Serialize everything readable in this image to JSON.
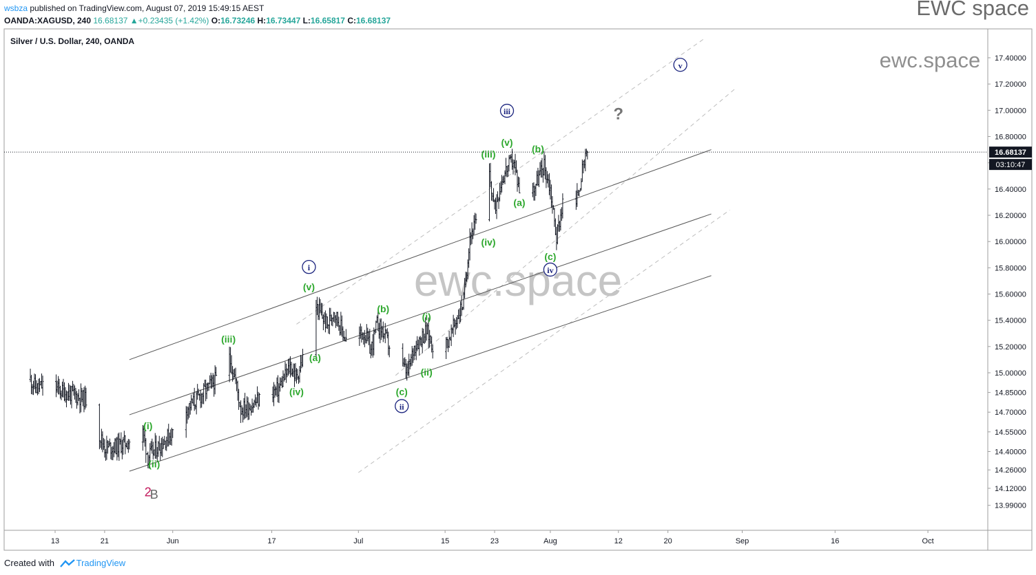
{
  "header": {
    "user": "wsbza",
    "published_text": " published on TradingView.com, August 07, 2019 15:49:15 AEST"
  },
  "ohlc": {
    "symbol": "OANDA:XAGUSD, 240",
    "last": "16.68137",
    "change": "+0.23435 (+1.42%)",
    "o_label": "O:",
    "o": "16.73246",
    "h_label": "H:",
    "h": "16.73447",
    "l_label": "L:",
    "l": "16.65817",
    "c_label": "C:",
    "c": "16.68137"
  },
  "brand": {
    "top_right": "EWC space",
    "watermark_small": "ewc.space",
    "watermark_center": "ewc.space"
  },
  "symbol_title": "Silver / U.S. Dollar, 240, OANDA",
  "footer": {
    "created_with": "Created with",
    "tv_name": "TradingView"
  },
  "colors": {
    "wave_green": "#2ea82e",
    "wave_navy": "#1a237e",
    "magenta": "#c2185b",
    "gray_label": "#666666",
    "price_tag": "#131722",
    "candle": "#131722",
    "channel": "#555555",
    "dashed": "#bdbdbd"
  },
  "chart_data": {
    "type": "candlestick",
    "title": "Silver / U.S. Dollar, 240, OANDA",
    "symbol": "OANDA:XAGUSD",
    "interval": "240",
    "ylim": [
      13.8,
      17.62
    ],
    "y_ticks": [
      "17.40000",
      "17.20000",
      "17.00000",
      "16.80000",
      "16.60000",
      "16.40000",
      "16.20000",
      "16.00000",
      "15.80000",
      "15.60000",
      "15.40000",
      "15.20000",
      "15.00000",
      "14.85000",
      "14.70000",
      "14.55000",
      "14.40000",
      "14.26000",
      "14.12000",
      "13.99000"
    ],
    "x_ticks": [
      "13",
      "21",
      "Jun",
      "17",
      "Jul",
      "15",
      "23",
      "Aug",
      "12",
      "20",
      "Sep",
      "16",
      "Oct"
    ],
    "last_price": "16.68137",
    "countdown": "03:10:47",
    "path": [
      [
        "May 9",
        14.95
      ],
      [
        "May 10",
        14.88
      ],
      [
        "May 12",
        14.92
      ],
      [
        "May 14",
        14.86
      ],
      [
        "May 16",
        14.83
      ],
      [
        "May 19",
        14.78
      ],
      [
        "May 20",
        14.55
      ],
      [
        "May 21",
        14.43
      ],
      [
        "May 23",
        14.44
      ],
      [
        "May 26",
        14.5
      ],
      [
        "May 27",
        14.58
      ],
      [
        "May 28",
        14.36
      ],
      [
        "May 30",
        14.45
      ],
      [
        "Jun 1",
        14.55
      ],
      [
        "Jun 3",
        14.72
      ],
      [
        "Jun 5",
        14.8
      ],
      [
        "Jun 8",
        14.95
      ],
      [
        "Jun 10",
        15.14
      ],
      [
        "Jun 11",
        14.98
      ],
      [
        "Jun 12",
        14.72
      ],
      [
        "Jun 14",
        14.76
      ],
      [
        "Jun 16",
        14.84
      ],
      [
        "Jun 18",
        14.87
      ],
      [
        "Jun 20",
        15.05
      ],
      [
        "Jun 21",
        14.96
      ],
      [
        "Jun 23",
        15.26
      ],
      [
        "Jun 24",
        15.52
      ],
      [
        "Jun 26",
        15.36
      ],
      [
        "Jun 27",
        15.48
      ],
      [
        "Jun 29",
        15.25
      ],
      [
        "Jul 2",
        15.3
      ],
      [
        "Jul 3",
        15.17
      ],
      [
        "Jul 4",
        15.37
      ],
      [
        "Jul 5",
        15.31
      ],
      [
        "Jul 6",
        15.2
      ],
      [
        "Jul 7",
        14.93
      ],
      [
        "Jul 8",
        15.05
      ],
      [
        "Jul 9",
        15.0
      ],
      [
        "Jul 10",
        15.2
      ],
      [
        "Jul 12",
        15.32
      ],
      [
        "Jul 14",
        15.1
      ],
      [
        "Jul 16",
        15.3
      ],
      [
        "Jul 18",
        15.55
      ],
      [
        "Jul 19",
        16.05
      ],
      [
        "Jul 20",
        16.14
      ],
      [
        "Jul 21",
        16.36
      ],
      [
        "Jul 22",
        16.55
      ],
      [
        "Jul 23",
        16.25
      ],
      [
        "Jul 24",
        16.45
      ],
      [
        "Jul 25",
        16.56
      ],
      [
        "Jul 26",
        16.62
      ],
      [
        "Jul 27",
        16.4
      ],
      [
        "Jul 29",
        16.38
      ],
      [
        "Jul 31",
        16.58
      ],
      [
        "Aug 1",
        16.4
      ],
      [
        "Aug 2",
        16.03
      ],
      [
        "Aug 3",
        16.3
      ],
      [
        "Aug 4",
        16.08
      ],
      [
        "Aug 5",
        16.25
      ],
      [
        "Aug 6",
        16.5
      ],
      [
        "Aug 7",
        16.68
      ]
    ],
    "channel_lines": [
      {
        "from": [
          "May 25",
          15.1
        ],
        "to": [
          "Aug 27",
          16.7
        ]
      },
      {
        "from": [
          "May 25",
          14.68
        ],
        "to": [
          "Aug 27",
          16.21
        ]
      },
      {
        "from": [
          "May 25",
          14.25
        ],
        "to": [
          "Aug 27",
          15.74
        ]
      }
    ],
    "dashed_lines": [
      {
        "from": [
          "Jun 21",
          15.37
        ],
        "to": [
          "Aug 26",
          17.55
        ]
      },
      {
        "from": [
          "Jul 7",
          14.98
        ],
        "to": [
          "Aug 31",
          17.17
        ]
      },
      {
        "from": [
          "Jul 1",
          14.24
        ],
        "to": [
          "Aug 30",
          16.24
        ]
      }
    ],
    "annotations": [
      {
        "text": "(i)",
        "x": "May 28",
        "y": 14.57,
        "style": "green"
      },
      {
        "text": "(ii)",
        "x": "May 29",
        "y": 14.28,
        "style": "green"
      },
      {
        "text": "(iii)",
        "x": "Jun 10",
        "y": 15.23,
        "style": "green"
      },
      {
        "text": "(iv)",
        "x": "Jun 21",
        "y": 14.83,
        "style": "green"
      },
      {
        "text": "(v)",
        "x": "Jun 23",
        "y": 15.63,
        "style": "green"
      },
      {
        "text": "(a)",
        "x": "Jun 24",
        "y": 15.09,
        "style": "green"
      },
      {
        "text": "(b)",
        "x": "Jul 5",
        "y": 15.46,
        "style": "green"
      },
      {
        "text": "(c)",
        "x": "Jul 8",
        "y": 14.83,
        "style": "green"
      },
      {
        "text": "(i)",
        "x": "Jul 12",
        "y": 15.4,
        "style": "green"
      },
      {
        "text": "(ii)",
        "x": "Jul 12",
        "y": 14.98,
        "style": "green"
      },
      {
        "text": "(iii)",
        "x": "Jul 22",
        "y": 16.64,
        "style": "green"
      },
      {
        "text": "(iv)",
        "x": "Jul 22",
        "y": 15.97,
        "style": "green"
      },
      {
        "text": "(v)",
        "x": "Jul 25",
        "y": 16.73,
        "style": "green"
      },
      {
        "text": "(a)",
        "x": "Jul 27",
        "y": 16.27,
        "style": "green"
      },
      {
        "text": "(b)",
        "x": "Jul 30",
        "y": 16.68,
        "style": "green"
      },
      {
        "text": "(c)",
        "x": "Aug 1",
        "y": 15.86,
        "style": "green"
      },
      {
        "text": "i",
        "x": "Jun 23",
        "y": 15.78,
        "style": "circle"
      },
      {
        "text": "ii",
        "x": "Jul 8",
        "y": 14.72,
        "style": "circle"
      },
      {
        "text": "iii",
        "x": "Jul 25",
        "y": 16.97,
        "style": "circle"
      },
      {
        "text": "iv",
        "x": "Aug 1",
        "y": 15.76,
        "style": "circle"
      },
      {
        "text": "v",
        "x": "Aug 22",
        "y": 17.32,
        "style": "circle"
      },
      {
        "text": "?",
        "x": "Aug 12",
        "y": 16.93,
        "style": "question"
      },
      {
        "text": "2",
        "x": "May 28",
        "y": 14.06,
        "style": "magenta"
      },
      {
        "text": "B",
        "x": "May 29",
        "y": 14.04,
        "style": "gray"
      }
    ]
  }
}
